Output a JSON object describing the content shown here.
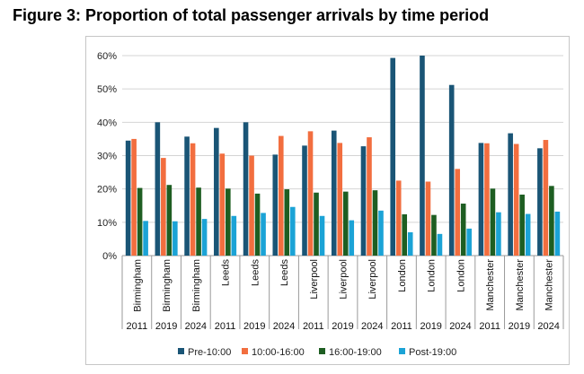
{
  "chart_data": {
    "type": "bar",
    "title": "Figure 3: Proportion of total passenger arrivals by time period",
    "xlabel": "",
    "ylabel": "",
    "ylim": [
      0,
      60
    ],
    "yticks": [
      "0%",
      "10%",
      "20%",
      "30%",
      "40%",
      "50%",
      "60%"
    ],
    "categories": [
      {
        "city": "Birmingham",
        "year": "2011"
      },
      {
        "city": "Birmingham",
        "year": "2019"
      },
      {
        "city": "Birmingham",
        "year": "2024"
      },
      {
        "city": "Leeds",
        "year": "2011"
      },
      {
        "city": "Leeds",
        "year": "2019"
      },
      {
        "city": "Leeds",
        "year": "2024"
      },
      {
        "city": "Liverpool",
        "year": "2011"
      },
      {
        "city": "Liverpool",
        "year": "2019"
      },
      {
        "city": "Liverpool",
        "year": "2024"
      },
      {
        "city": "London",
        "year": "2011"
      },
      {
        "city": "London",
        "year": "2019"
      },
      {
        "city": "London",
        "year": "2024"
      },
      {
        "city": "Manchester",
        "year": "2011"
      },
      {
        "city": "Manchester",
        "year": "2019"
      },
      {
        "city": "Manchester",
        "year": "2024"
      }
    ],
    "series": [
      {
        "name": "Pre-10:00",
        "color": "#1a5576",
        "values": [
          34.5,
          40.0,
          35.7,
          38.3,
          40.0,
          30.3,
          33.0,
          37.5,
          32.8,
          59.3,
          60.0,
          51.2,
          33.8,
          36.7,
          32.2
        ]
      },
      {
        "name": "10:00-16:00",
        "color": "#f26e3f",
        "values": [
          35.0,
          29.3,
          33.7,
          30.6,
          30.0,
          35.9,
          37.3,
          33.8,
          35.5,
          22.5,
          22.2,
          26.0,
          33.7,
          33.5,
          34.7
        ]
      },
      {
        "name": "16:00-19:00",
        "color": "#1e5e22",
        "values": [
          20.3,
          21.2,
          20.4,
          20.1,
          18.6,
          19.9,
          18.9,
          19.2,
          19.6,
          12.4,
          12.2,
          15.6,
          20.1,
          18.3,
          20.9
        ]
      },
      {
        "name": "Post-19:00",
        "color": "#1ba3d6",
        "values": [
          10.4,
          10.3,
          11.0,
          11.9,
          12.8,
          14.6,
          11.9,
          10.6,
          13.5,
          7.0,
          6.5,
          8.1,
          13.0,
          12.5,
          13.2
        ]
      }
    ],
    "legend_position": "bottom"
  }
}
